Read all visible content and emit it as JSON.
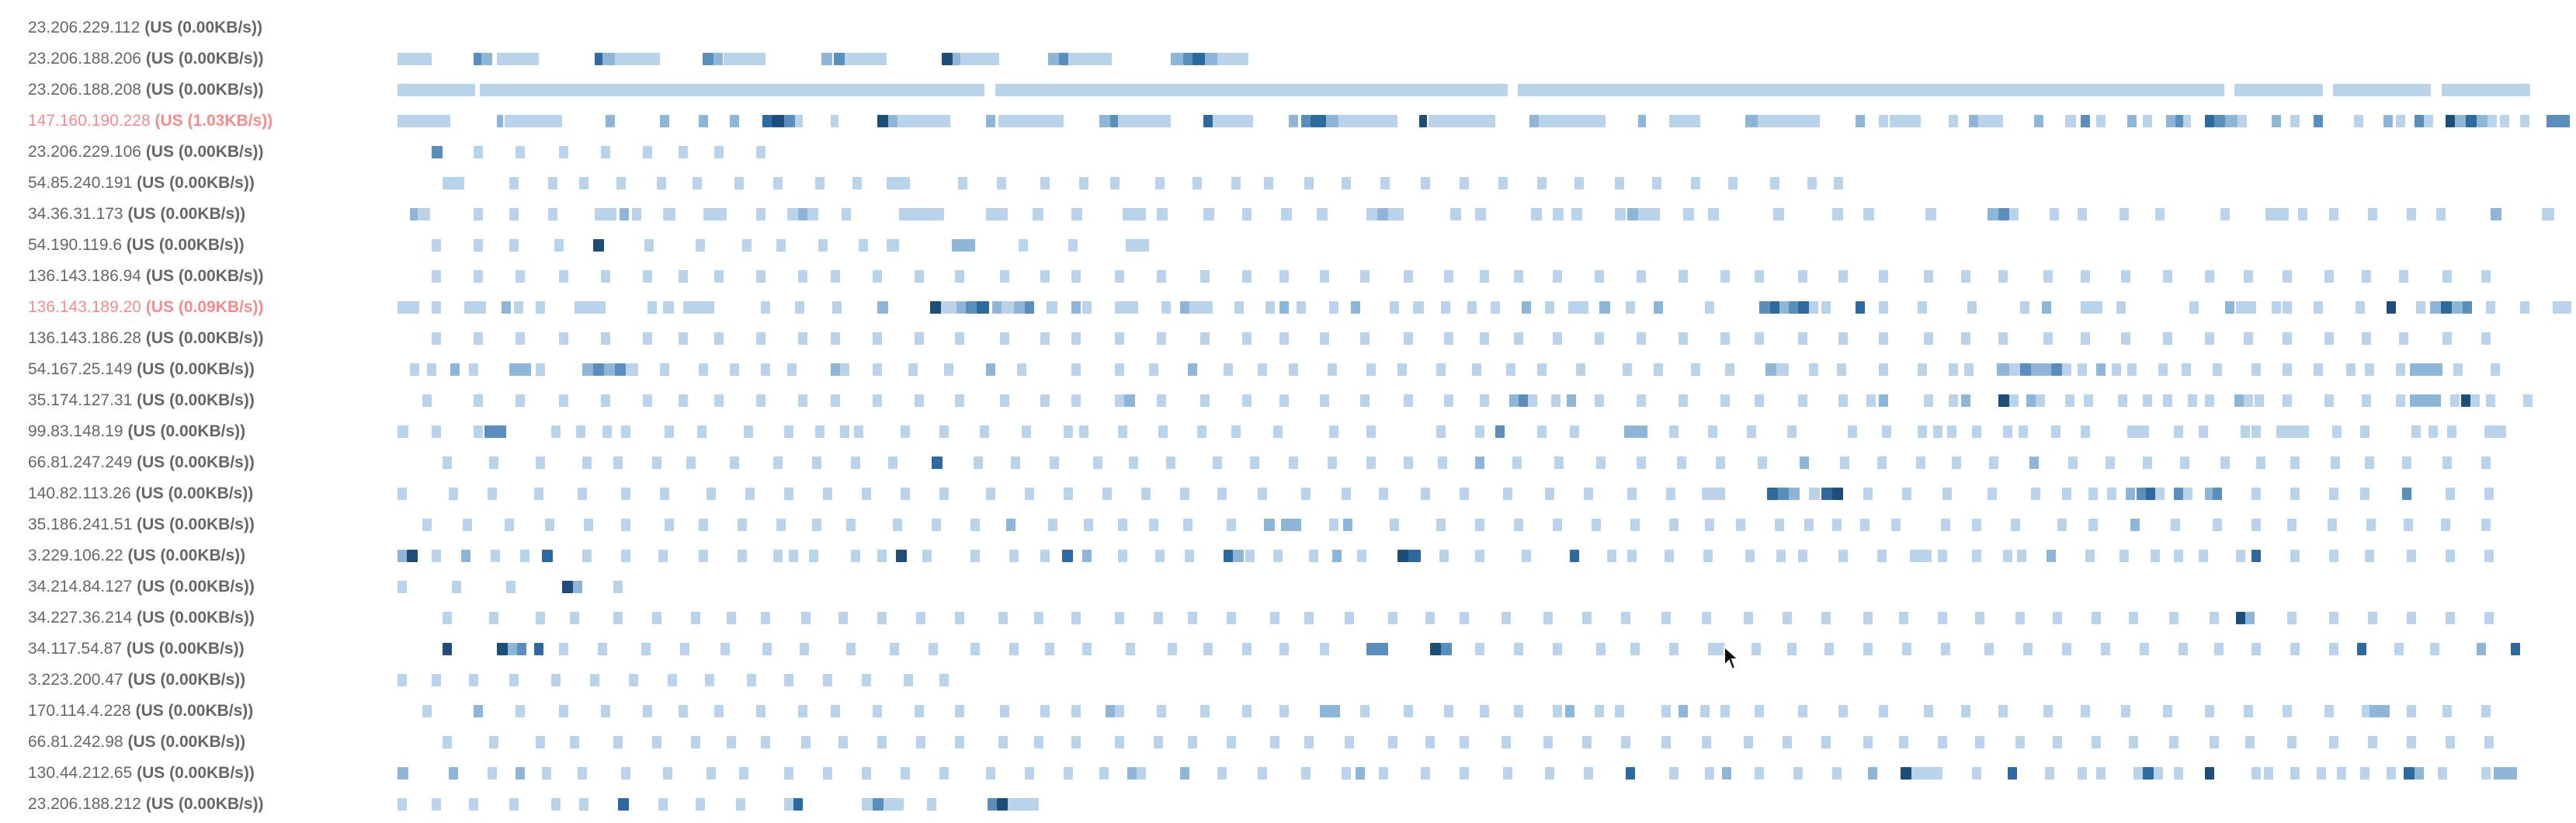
{
  "colors": {
    "label_text": "#666666",
    "active_label_text": "#f58b8b",
    "level_1": "#b9d3ea",
    "level_2": "#8db6d8",
    "level_3": "#5a8fbd",
    "level_4": "#2e6a9d",
    "level_5": "#1d4e7a",
    "background": "#ffffff"
  },
  "icons": {
    "cursor": "mouse-pointer-icon"
  },
  "rows": [
    {
      "ip": "23.206.229.112",
      "meta": "(US (0.00KB/s))",
      "active": false
    },
    {
      "ip": "23.206.188.206",
      "meta": "(US (0.00KB/s))",
      "active": false
    },
    {
      "ip": "23.206.188.208",
      "meta": "(US (0.00KB/s))",
      "active": false
    },
    {
      "ip": "147.160.190.228",
      "meta": "(US (1.03KB/s))",
      "active": true
    },
    {
      "ip": "23.206.229.106",
      "meta": "(US (0.00KB/s))",
      "active": false
    },
    {
      "ip": "54.85.240.191",
      "meta": "(US (0.00KB/s))",
      "active": false
    },
    {
      "ip": "34.36.31.173",
      "meta": "(US (0.00KB/s))",
      "active": false
    },
    {
      "ip": "54.190.119.6",
      "meta": "(US (0.00KB/s))",
      "active": false
    },
    {
      "ip": "136.143.186.94",
      "meta": "(US (0.00KB/s))",
      "active": false
    },
    {
      "ip": "136.143.189.20",
      "meta": "(US (0.09KB/s))",
      "active": true
    },
    {
      "ip": "136.143.186.28",
      "meta": "(US (0.00KB/s))",
      "active": false
    },
    {
      "ip": "54.167.25.149",
      "meta": "(US (0.00KB/s))",
      "active": false
    },
    {
      "ip": "35.174.127.31",
      "meta": "(US (0.00KB/s))",
      "active": false
    },
    {
      "ip": "99.83.148.19",
      "meta": "(US (0.00KB/s))",
      "active": false
    },
    {
      "ip": "66.81.247.249",
      "meta": "(US (0.00KB/s))",
      "active": false
    },
    {
      "ip": "140.82.113.26",
      "meta": "(US (0.00KB/s))",
      "active": false
    },
    {
      "ip": "35.186.241.51",
      "meta": "(US (0.00KB/s))",
      "active": false
    },
    {
      "ip": "3.229.106.22",
      "meta": "(US (0.00KB/s))",
      "active": false
    },
    {
      "ip": "34.214.84.127",
      "meta": "(US (0.00KB/s))",
      "active": false
    },
    {
      "ip": "34.227.36.214",
      "meta": "(US (0.00KB/s))",
      "active": false
    },
    {
      "ip": "34.117.54.87",
      "meta": "(US (0.00KB/s))",
      "active": false
    },
    {
      "ip": "3.223.200.47",
      "meta": "(US (0.00KB/s))",
      "active": false
    },
    {
      "ip": "170.114.4.228",
      "meta": "(US (0.00KB/s))",
      "active": false
    },
    {
      "ip": "66.81.242.98",
      "meta": "(US (0.00KB/s))",
      "active": false
    },
    {
      "ip": "130.44.212.65",
      "meta": "(US (0.00KB/s))",
      "active": false
    },
    {
      "ip": "23.206.188.212",
      "meta": "(US (0.00KB/s))",
      "active": false
    }
  ]
}
